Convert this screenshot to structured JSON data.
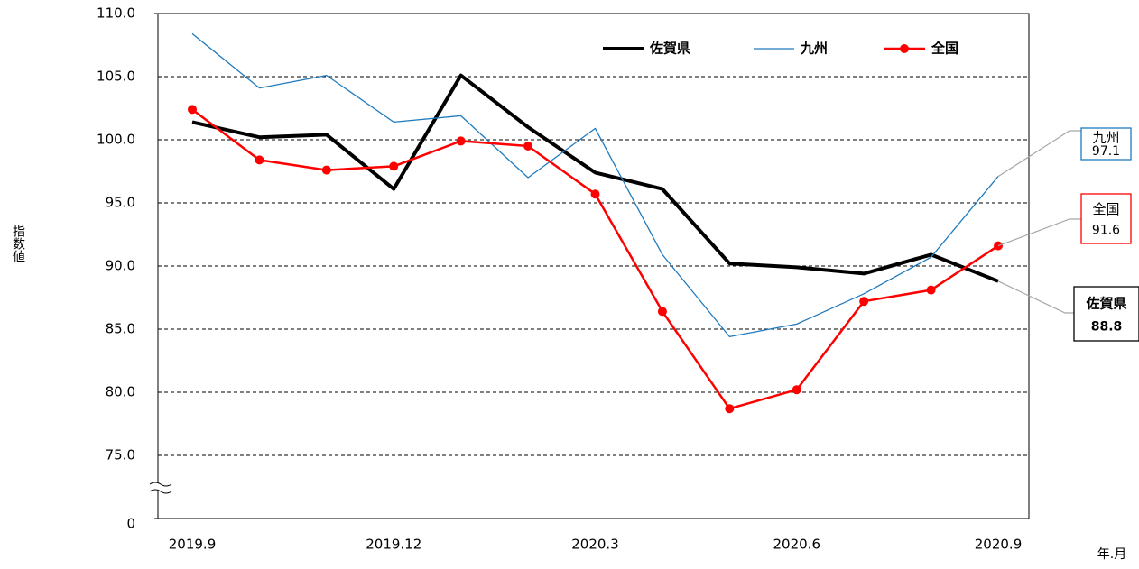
{
  "chart_data": {
    "type": "line",
    "y_label": "指数値",
    "x_label": "年.月",
    "categories": [
      "2019.9",
      null,
      null,
      "2019.12",
      null,
      null,
      "2020.3",
      null,
      null,
      "2020.6",
      null,
      null,
      "2020.9"
    ],
    "series": [
      {
        "name": "佐賀県",
        "color": "#000000",
        "line_width": 4,
        "marker": false,
        "values": [
          101.4,
          100.2,
          100.4,
          96.1,
          105.1,
          101.0,
          97.4,
          96.1,
          90.2,
          89.9,
          89.4,
          90.9,
          88.8
        ]
      },
      {
        "name": "九州",
        "color": "#1f7bbf",
        "line_width": 1.3,
        "marker": false,
        "values": [
          108.4,
          104.1,
          105.1,
          101.4,
          101.9,
          97.0,
          100.9,
          90.9,
          84.4,
          85.4,
          87.8,
          90.7,
          97.1
        ]
      },
      {
        "name": "全国",
        "color": "#ff0000",
        "line_width": 2.5,
        "marker": true,
        "values": [
          102.4,
          98.4,
          97.6,
          97.9,
          99.9,
          99.5,
          95.7,
          86.4,
          78.7,
          80.2,
          87.2,
          88.1,
          91.6
        ]
      }
    ],
    "ylim": [
      0,
      110
    ],
    "yticks": [
      0,
      {
        "value": 75,
        "label": "75.0"
      },
      {
        "value": 80,
        "label": "80.0"
      },
      {
        "value": 85,
        "label": "85.0"
      },
      {
        "value": 90,
        "label": "90.0"
      },
      {
        "value": 95,
        "label": "95.0"
      },
      {
        "value": 100,
        "label": "100.0"
      },
      {
        "value": 105,
        "label": "105.0"
      },
      {
        "value": 110,
        "label": "110.0"
      }
    ],
    "axis_break": true,
    "grid": true
  }
}
